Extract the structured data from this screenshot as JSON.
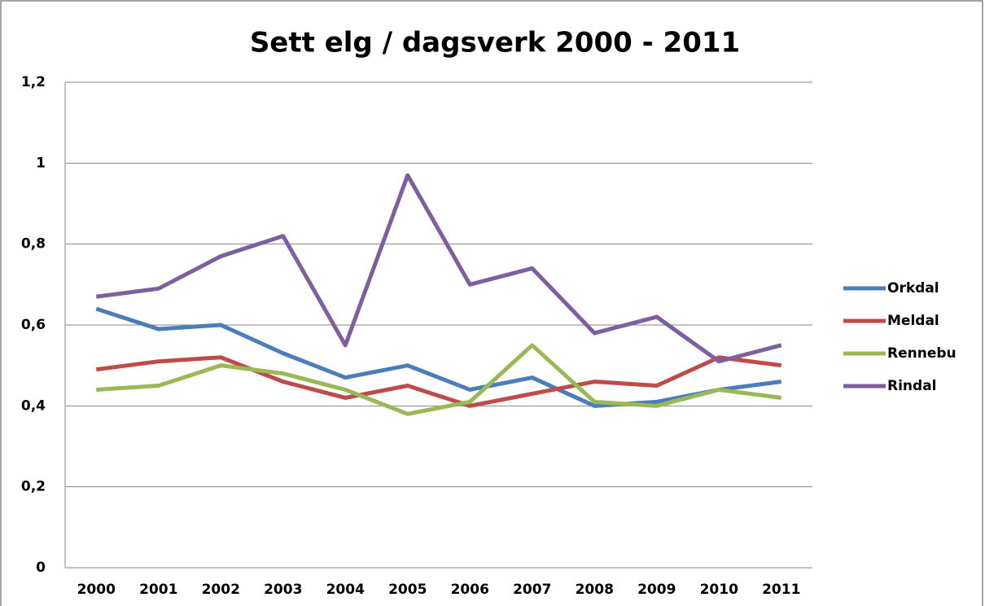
{
  "chart_data": {
    "type": "line",
    "title": "Sett elg / dagsverk 2000 - 2011",
    "categories": [
      "2000",
      "2001",
      "2002",
      "2003",
      "2004",
      "2005",
      "2006",
      "2007",
      "2008",
      "2009",
      "2010",
      "2011"
    ],
    "series": [
      {
        "name": "Orkdal",
        "color": "#4a7ebb",
        "values": [
          0.64,
          0.59,
          0.6,
          0.53,
          0.47,
          0.5,
          0.44,
          0.47,
          0.4,
          0.41,
          0.44,
          0.46
        ]
      },
      {
        "name": "Meldal",
        "color": "#be4b48",
        "values": [
          0.49,
          0.51,
          0.52,
          0.46,
          0.42,
          0.45,
          0.4,
          0.43,
          0.46,
          0.45,
          0.52,
          0.5
        ]
      },
      {
        "name": "Rennebu",
        "color": "#98b954",
        "values": [
          0.44,
          0.45,
          0.5,
          0.48,
          0.44,
          0.38,
          0.41,
          0.55,
          0.41,
          0.4,
          0.44,
          0.42
        ]
      },
      {
        "name": "Rindal",
        "color": "#7d5fa0",
        "values": [
          0.67,
          0.69,
          0.77,
          0.82,
          0.55,
          0.97,
          0.7,
          0.74,
          0.58,
          0.62,
          0.51,
          0.55
        ]
      }
    ],
    "ylim": [
      0,
      1.2
    ],
    "yticks": [
      0,
      {
        "value": 0.2,
        "label": "0,2"
      },
      {
        "value": 0.4,
        "label": "0,4"
      },
      {
        "value": 0.6,
        "label": "0,6"
      },
      {
        "value": 0.8,
        "label": "0,8"
      },
      1,
      {
        "value": 1.2,
        "label": "1,2"
      }
    ],
    "grid": true,
    "legend": "right"
  }
}
